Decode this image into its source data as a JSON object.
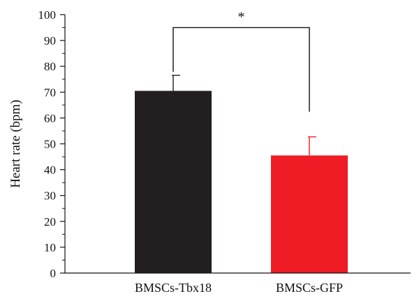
{
  "chart_data": {
    "type": "bar",
    "categories": [
      "BMSCs-Tbx18",
      "BMSCs-GFP"
    ],
    "values": [
      70.5,
      45.5
    ],
    "errors": [
      6.0,
      7.2
    ],
    "colors": [
      "#231f20",
      "#ee1c25"
    ],
    "ylabel": "Heart rate (bpm)",
    "xlabel": "",
    "ylim": [
      0,
      100
    ],
    "yticks": [
      0,
      10,
      20,
      30,
      40,
      50,
      60,
      70,
      80,
      90,
      100
    ],
    "minor_ticks": true,
    "grid": false,
    "significance": {
      "label": "*",
      "between": [
        "BMSCs-Tbx18",
        "BMSCs-GFP"
      ],
      "bracket_level": 95
    }
  }
}
